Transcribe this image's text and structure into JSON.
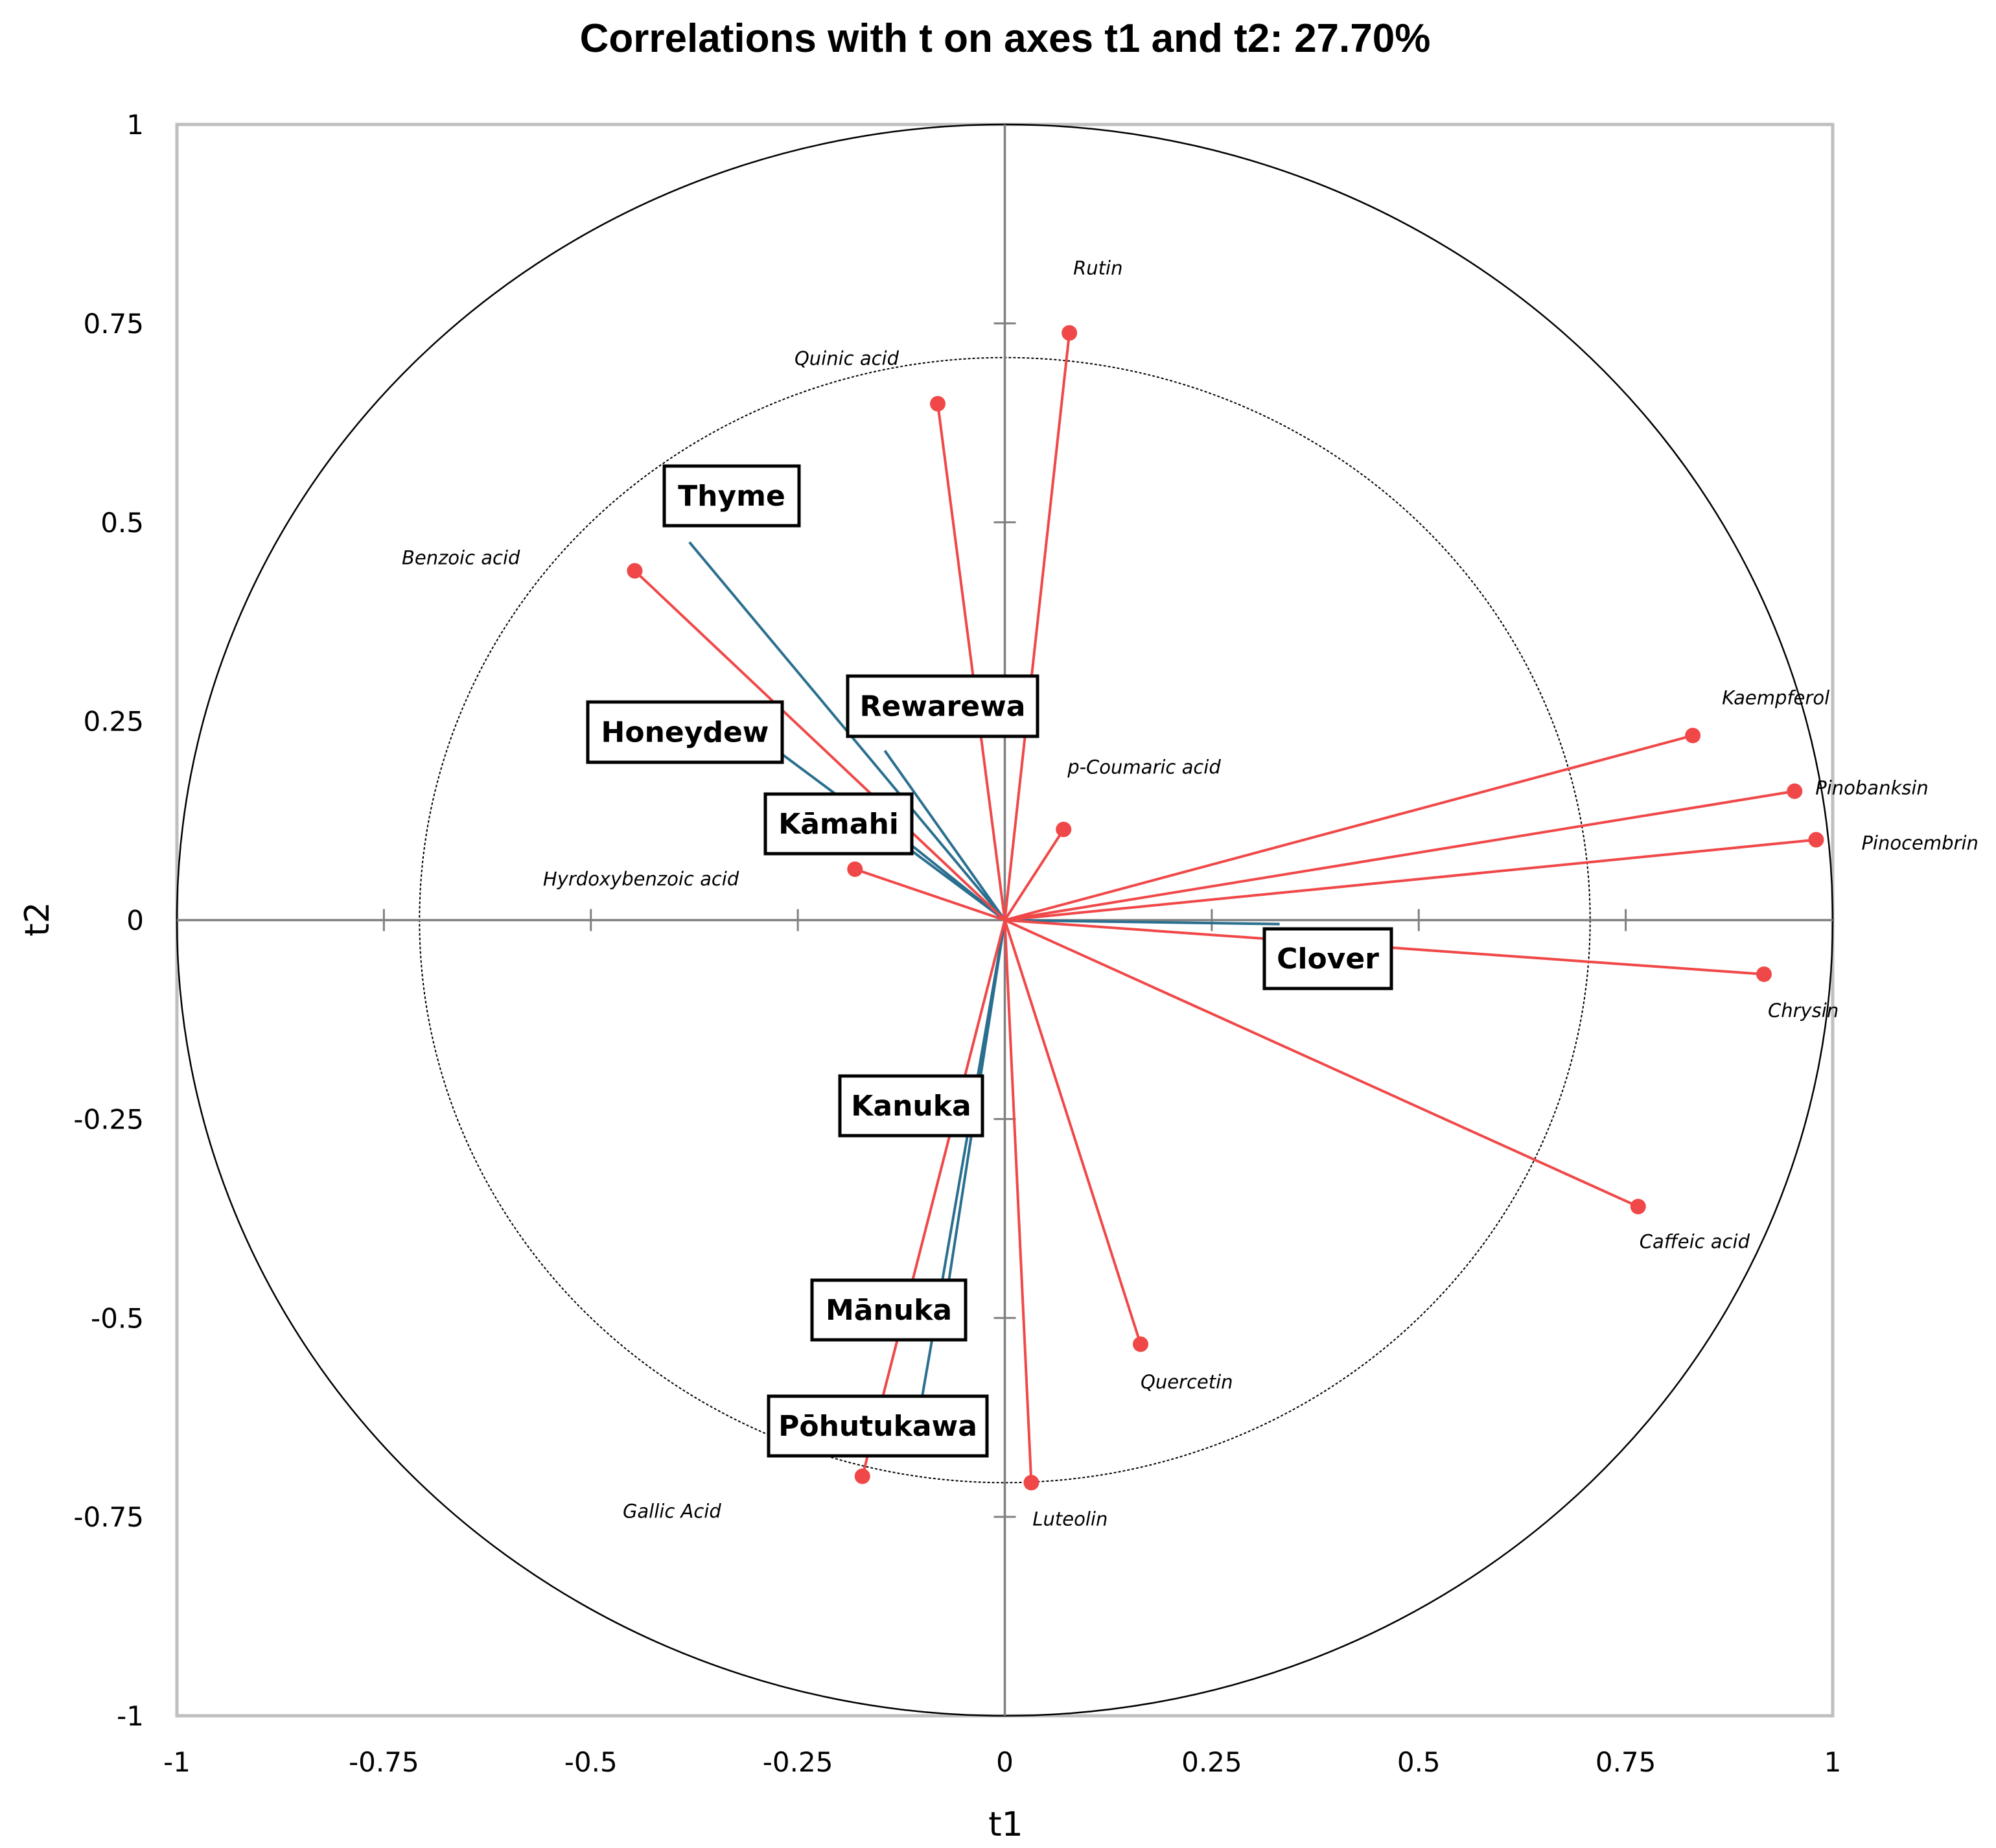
{
  "chart_data": {
    "type": "scatter",
    "title": "Correlations with t on axes t1 and t2: 27.70%",
    "xlabel": "t1",
    "ylabel": "t2",
    "xlim": [
      -1,
      1
    ],
    "ylim": [
      -1,
      1
    ],
    "xticks": [
      "-1",
      "-0.75",
      "-0.5",
      "-0.25",
      "0",
      "0.25",
      "0.5",
      "0.75",
      "1"
    ],
    "yticks": [
      "-1",
      "-0.75",
      "-0.5",
      "-0.25",
      "0",
      "0.25",
      "0.5",
      "0.75",
      "1"
    ],
    "xtick_values": [
      -1,
      -0.75,
      -0.5,
      -0.25,
      0,
      0.25,
      0.5,
      0.75,
      1
    ],
    "ytick_values": [
      -1,
      -0.75,
      -0.5,
      -0.25,
      0,
      0.25,
      0.5,
      0.75,
      1
    ],
    "circles": [
      1.0,
      0.707
    ],
    "grid": false,
    "colors": {
      "variables": "#f04848",
      "supplementary": "#2b6f8f",
      "frame": "#bfbfbf",
      "axes": "#808080"
    },
    "variables": [
      {
        "name": "Rutin",
        "x": 0.078,
        "y": 0.738
      },
      {
        "name": "Quinic acid",
        "x": -0.081,
        "y": 0.649
      },
      {
        "name": "Benzoic acid",
        "x": -0.447,
        "y": 0.439
      },
      {
        "name": "Hyrdoxybenzoic acid",
        "x": -0.181,
        "y": 0.064
      },
      {
        "name": "p-Coumaric acid",
        "x": 0.071,
        "y": 0.114
      },
      {
        "name": "Kaempferol",
        "x": 0.831,
        "y": 0.232
      },
      {
        "name": "Pinobanksin",
        "x": 0.954,
        "y": 0.162
      },
      {
        "name": "Pinocembrin",
        "x": 0.98,
        "y": 0.101
      },
      {
        "name": "Chrysin",
        "x": 0.917,
        "y": -0.068
      },
      {
        "name": "Caffeic acid",
        "x": 0.765,
        "y": -0.36
      },
      {
        "name": "Quercetin",
        "x": 0.164,
        "y": -0.533
      },
      {
        "name": "Luteolin",
        "x": 0.032,
        "y": -0.707
      },
      {
        "name": "Gallic Acid",
        "x": -0.172,
        "y": -0.699
      }
    ],
    "supplementary": [
      {
        "name": "Thyme",
        "x": -0.381,
        "y": 0.475
      },
      {
        "name": "Honeydew",
        "x": -0.271,
        "y": 0.21
      },
      {
        "name": "Rewarewa",
        "x": -0.145,
        "y": 0.213
      },
      {
        "name": "Kāmahi",
        "x": -0.115,
        "y": 0.096
      },
      {
        "name": "Clover",
        "x": 0.332,
        "y": -0.005
      },
      {
        "name": "Kanuka",
        "x": -0.032,
        "y": -0.203
      },
      {
        "name": "Mānuka",
        "x": -0.068,
        "y": -0.456
      },
      {
        "name": "Pōhutukawa",
        "x": -0.1,
        "y": -0.6
      }
    ]
  }
}
